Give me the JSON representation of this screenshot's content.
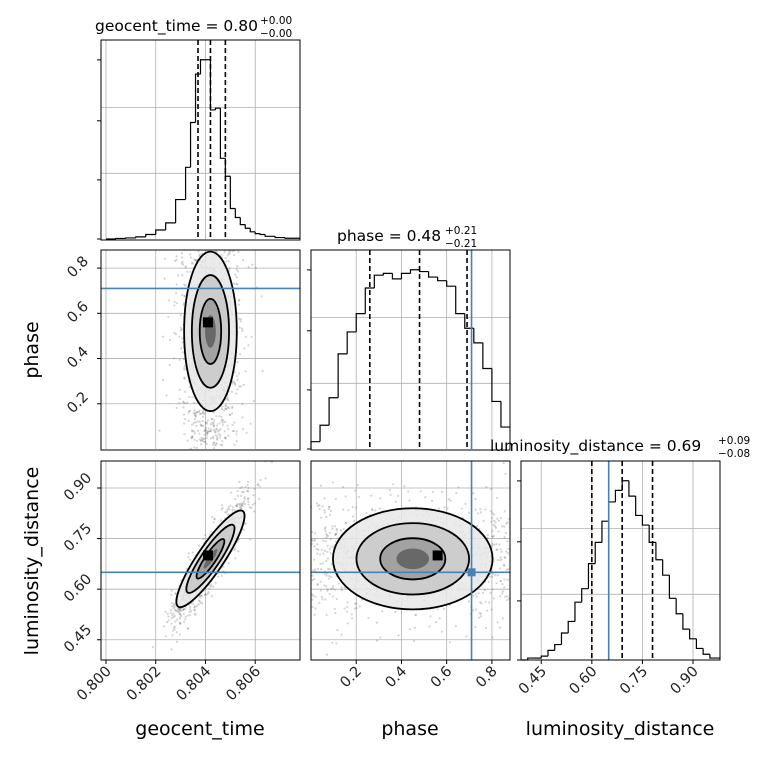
{
  "chart_data": {
    "type": "corner",
    "parameters": [
      "geocent_time",
      "phase",
      "luminosity_distance"
    ],
    "truths": {
      "phase": 0.71,
      "luminosity_distance": 0.65
    },
    "colors": {
      "truth": "#4682b4",
      "hist": "#000000",
      "grid": "#b0b0b0"
    },
    "titles": [
      {
        "param": "geocent_time",
        "label": "geocent_time = 0.80",
        "plus": "+0.00",
        "minus": "−0.00"
      },
      {
        "param": "phase",
        "label": "phase = 0.48",
        "plus": "+0.21",
        "minus": "−0.21"
      },
      {
        "param": "luminosity_distance",
        "label": "luminosity_distance = 0.69",
        "plus": "+0.09",
        "minus": "−0.08"
      }
    ],
    "axis_labels": {
      "geocent_time": "geocent_time",
      "phase": "phase",
      "luminosity_distance": "luminosity_distance"
    },
    "ranges": {
      "geocent_time": [
        0.7998,
        0.8078
      ],
      "phase": [
        0.0,
        0.88
      ],
      "luminosity_distance": [
        0.39,
        0.98
      ]
    },
    "ticks": {
      "geocent_time": [
        {
          "v": 0.8,
          "label": "0.800"
        },
        {
          "v": 0.802,
          "label": "0.802"
        },
        {
          "v": 0.804,
          "label": "0.804"
        },
        {
          "v": 0.806,
          "label": "0.806"
        }
      ],
      "phase": [
        {
          "v": 0.2,
          "label": "0.2"
        },
        {
          "v": 0.4,
          "label": "0.4"
        },
        {
          "v": 0.6,
          "label": "0.6"
        },
        {
          "v": 0.8,
          "label": "0.8"
        }
      ],
      "luminosity_distance": [
        {
          "v": 0.45,
          "label": "0.45"
        },
        {
          "v": 0.6,
          "label": "0.60"
        },
        {
          "v": 0.75,
          "label": "0.75"
        },
        {
          "v": 0.9,
          "label": "0.90"
        }
      ]
    },
    "quantiles": {
      "geocent_time": [
        0.8037,
        0.8042,
        0.8048
      ],
      "phase": [
        0.26,
        0.48,
        0.69
      ],
      "luminosity_distance": [
        0.6,
        0.69,
        0.78
      ]
    },
    "histograms": {
      "geocent_time": {
        "edges": [
          0.8,
          0.8004,
          0.8008,
          0.8012,
          0.8016,
          0.802,
          0.8024,
          0.8028,
          0.8032,
          0.8034,
          0.8036,
          0.8038,
          0.804,
          0.8042,
          0.8044,
          0.8046,
          0.8048,
          0.805,
          0.8052,
          0.8054,
          0.8056,
          0.8058,
          0.806,
          0.8062,
          0.8064,
          0.8068,
          0.8072,
          0.8078
        ],
        "counts": [
          0,
          0.3,
          0.6,
          1.2,
          2.5,
          5,
          9,
          22,
          40,
          65,
          92,
          100,
          100,
          72,
          73,
          45,
          35,
          17,
          12,
          8,
          6,
          4,
          3,
          2.5,
          1.5,
          0.8,
          0.4
        ]
      },
      "phase": {
        "edges": [
          0.0,
          0.04,
          0.08,
          0.12,
          0.16,
          0.2,
          0.24,
          0.28,
          0.32,
          0.36,
          0.4,
          0.44,
          0.48,
          0.52,
          0.56,
          0.6,
          0.64,
          0.68,
          0.72,
          0.76,
          0.8,
          0.84,
          0.88
        ],
        "counts": [
          4,
          13,
          28,
          52,
          64,
          74,
          88,
          95,
          96,
          93,
          96,
          98,
          97,
          94,
          92,
          89,
          74,
          66,
          58,
          44,
          26,
          12
        ]
      },
      "luminosity_distance": {
        "edges": [
          0.39,
          0.41,
          0.43,
          0.45,
          0.47,
          0.49,
          0.51,
          0.53,
          0.55,
          0.57,
          0.59,
          0.61,
          0.63,
          0.65,
          0.67,
          0.69,
          0.71,
          0.73,
          0.75,
          0.77,
          0.79,
          0.81,
          0.83,
          0.85,
          0.87,
          0.89,
          0.91,
          0.93,
          0.95,
          0.98
        ],
        "counts": [
          0,
          1,
          1,
          2,
          5,
          8,
          14,
          20,
          30,
          37,
          50,
          61,
          72,
          82,
          88,
          93,
          85,
          75,
          70,
          61,
          52,
          44,
          32,
          24,
          16,
          11,
          6,
          3,
          1
        ]
      }
    },
    "posterior_2d": {
      "phase_vs_geocent_time": {
        "center": [
          0.8042,
          0.52
        ],
        "sd": [
          0.0006,
          0.2
        ],
        "corr": 0.1,
        "mode": [
          0.8041,
          0.56
        ]
      },
      "luminosity_distance_vs_geocent_time": {
        "center": [
          0.8042,
          0.69
        ],
        "sd": [
          0.0007,
          0.085
        ],
        "corr": 0.9,
        "mode": [
          0.8041,
          0.7
        ]
      },
      "luminosity_distance_vs_phase": {
        "center": [
          0.45,
          0.69
        ],
        "sd": [
          0.2,
          0.085
        ],
        "corr": 0.0,
        "mode": [
          0.56,
          0.7
        ]
      }
    }
  }
}
